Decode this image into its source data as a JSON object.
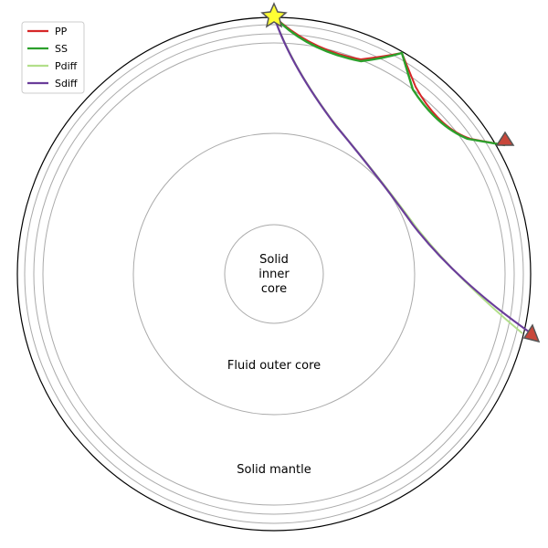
{
  "layers": {
    "inner_core": [
      "Solid",
      "inner",
      "core"
    ],
    "outer_core": "Fluid outer core",
    "mantle": "Solid mantle"
  },
  "legend": [
    {
      "label": "PP",
      "color": "#d62728"
    },
    {
      "label": "SS",
      "color": "#2ca02c"
    },
    {
      "label": "Pdiff",
      "color": "#b2df8a"
    },
    {
      "label": "Sdiff",
      "color": "#6a3d9a"
    }
  ],
  "colors": {
    "source_marker": "#ffff33",
    "station_marker": "#c8473a",
    "boundary": "#aaaaaa",
    "surface": "#000000"
  },
  "markers": {
    "source": "star-icon",
    "station": "triangle-icon"
  }
}
